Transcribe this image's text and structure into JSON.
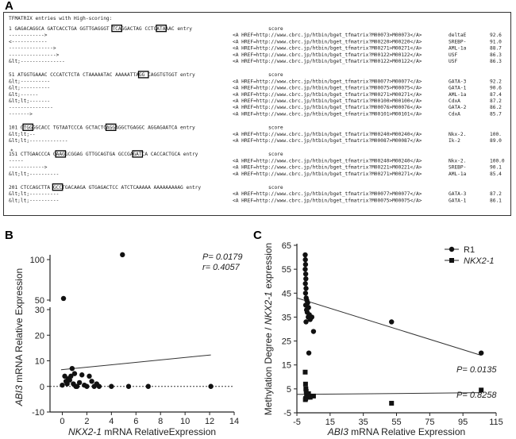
{
  "panel_letters": {
    "a": "A",
    "b": "B",
    "c": "C"
  },
  "panel_a": {
    "header": "TFMATRIX entries with High-scoring:",
    "score_word": "score",
    "asterisk": "*",
    "blocks": [
      {
        "seq_lines": [
          {
            "text": "1 GAGACAGGCA GATCACCTGA GGTTGAGGGT TCAGGACTAG CCTCATAAAC entry",
            "boxes": [
              {
                "start": 35,
                "len": 3
              },
              {
                "start": 50,
                "len": 3
              }
            ]
          },
          {
            "text": "       ------------>              ",
            "boxes": []
          },
          {
            "text": "        <------------             ",
            "boxes": []
          },
          {
            "text": "      --------------->            ",
            "boxes": []
          },
          {
            "text": "      ---------------->           ",
            "boxes": []
          },
          {
            "text": "       &lt;---------------        ",
            "boxes": []
          }
        ],
        "entries": [
          {
            "text": "<A HREF=http://www.cbrc.jp/htbin/bget_tfmatrix?M00073>M00073</A>",
            "factor": "deltaE",
            "score": "92.6"
          },
          {
            "text": "<A HREF=http://www.cbrc.jp/htbin/bget_tfmatrix?M00220>M00220</A>",
            "factor": "SREBP-",
            "score": "91.0"
          },
          {
            "text": "<A HREF=http://www.cbrc.jp/htbin/bget_tfmatrix?M00271>M00271</A>",
            "factor": "AML-1a",
            "score": "88.7"
          },
          {
            "text": "<A HREF=http://www.cbrc.jp/htbin/bget_tfmatrix?M00122>M00122</A>",
            "factor": "USF",
            "score": "86.3"
          },
          {
            "text": "<A HREF=http://www.cbrc.jp/htbin/bget_tfmatrix?M00122>M00122</A>",
            "factor": "USF",
            "score": "86.3"
          }
        ]
      },
      {
        "seq_lines": [
          {
            "text": "51 ATGGTGAAAC CCCATCTCTA CTAAAAATAC AAAAATTAGG CAGGTGTGGT entry",
            "boxes": [
              {
                "start": 44,
                "len": 3
              }
            ]
          },
          {
            "text": "          &lt;----------          ",
            "boxes": []
          },
          {
            "text": "         &lt;----------           ",
            "boxes": []
          },
          {
            "text": "        &lt;------               ",
            "boxes": []
          },
          {
            "text": "                      &lt;lt;-------",
            "boxes": []
          },
          {
            "text": "           ---------------        ",
            "boxes": []
          },
          {
            "text": "                  ------->        ",
            "boxes": []
          }
        ],
        "entries": [
          {
            "text": "<A HREF=http://www.cbrc.jp/htbin/bget_tfmatrix?M00077>M00077</A>",
            "factor": "GATA-3",
            "score": "92.2"
          },
          {
            "text": "<A HREF=http://www.cbrc.jp/htbin/bget_tfmatrix?M00075>M00075</A>",
            "factor": "GATA-1",
            "score": "90.6"
          },
          {
            "text": "<A HREF=http://www.cbrc.jp/htbin/bget_tfmatrix?M00271>M00271</A>",
            "factor": "AML-1a",
            "score": "87.4"
          },
          {
            "text": "<A HREF=http://www.cbrc.jp/htbin/bget_tfmatrix?M00100>M00100</A>",
            "factor": "CdxA",
            "score": "87.2"
          },
          {
            "text": "<A HREF=http://www.cbrc.jp/htbin/bget_tfmatrix?M00076>M00076</A>",
            "factor": "GATA-2",
            "score": "86.2"
          },
          {
            "text": "<A HREF=http://www.cbrc.jp/htbin/bget_tfmatrix?M00101>M00101</A>",
            "factor": "CdxA",
            "score": "85.7"
          }
        ]
      },
      {
        "seq_lines": [
          {
            "text": "101 GTGGGGCACC TGTAATCCCA GCTACTCAGGAGGCTGAGGC AGGAGAATCA entry",
            "boxes": [
              {
                "start": 5,
                "len": 3
              },
              {
                "start": 33,
                "len": 3
              }
            ]
          },
          {
            "text": "                                      &lt;lt;--",
            "boxes": []
          },
          {
            "text": "       &lt;lt;-------------        ",
            "boxes": []
          }
        ],
        "entries": [
          {
            "text": "<A HREF=http://www.cbrc.jp/htbin/bget_tfmatrix?M00240>M00240</A>",
            "factor": "Nkx-2.",
            "score": "100."
          },
          {
            "text": "<A HREF=http://www.cbrc.jp/htbin/bget_tfmatrix?M00087>M00087</A>",
            "factor": "Ik-2",
            "score": "89.0"
          }
        ]
      },
      {
        "seq_lines": [
          {
            "text": "151 CTTGAACCCA GAAGGCGGAG GTTGCAGTGA GCCGAGATCA CACCACTGCA entry",
            "boxes": [
              {
                "start": 16,
                "len": 3
              },
              {
                "start": 42,
                "len": 3
              }
            ]
          },
          {
            "text": "    -----                          ",
            "boxes": []
          },
          {
            "text": "                 ------------>     ",
            "boxes": []
          },
          {
            "text": "               &lt;lt;----------     ",
            "boxes": []
          }
        ],
        "entries": [
          {
            "text": "<A HREF=http://www.cbrc.jp/htbin/bget_tfmatrix?M00240>M00240</A>",
            "factor": "Nkx-2.",
            "score": "100.0"
          },
          {
            "text": "<A HREF=http://www.cbrc.jp/htbin/bget_tfmatrix?M00221>M00221</A>",
            "factor": "SREBP-",
            "score": "90.1"
          },
          {
            "text": "<A HREF=http://www.cbrc.jp/htbin/bget_tfmatrix?M00271>M00271</A>",
            "factor": "AML-1a",
            "score": "85.4"
          }
        ]
      },
      {
        "seq_lines": [
          {
            "text": "201 CTCCAGCTTA GCCTGACAAGA GTGAGACTCC ATCTCAAAAA AAAAAAAAAG entry",
            "boxes": [
              {
                "start": 15,
                "len": 3
              }
            ]
          },
          {
            "text": "              &lt;lt;----------      ",
            "boxes": []
          },
          {
            "text": "              &lt;lt;----------      ",
            "boxes": []
          }
        ],
        "entries": [
          {
            "text": "<A HREF=http://www.cbrc.jp/htbin/bget_tfmatrix?M00077>M00077</A>",
            "factor": "GATA-3",
            "score": "87.2"
          },
          {
            "text": "<A HREF=http://www.cbrc.jp/htbin/bget_tfmatrix?M00075>M00075</A>",
            "factor": "GATA-1",
            "score": "86.1"
          }
        ]
      }
    ]
  },
  "chart_data": [
    {
      "type": "scatter",
      "panel": "B",
      "xlabel_italic": "NKX2-1",
      "xlabel_rest": " mRNA RelativeExpression",
      "ylabel_italic": "ABI3",
      "ylabel_rest": " mRNA Relative Expression",
      "x_ticks": [
        "0",
        "2",
        "4",
        "6",
        "8",
        "10",
        "12",
        "14"
      ],
      "y_ticks": [
        "-10",
        "0",
        "10",
        "20",
        "30",
        "50",
        "100"
      ],
      "xlim": [
        -1,
        14
      ],
      "ylim_lower": [
        -10,
        30
      ],
      "ylim_upper": [
        50,
        110
      ],
      "stats": {
        "p": "P= 0.0179",
        "r": "r= 0.4057"
      },
      "points": [
        {
          "x": 0.1,
          "y": 52
        },
        {
          "x": 4.9,
          "y": 106
        },
        {
          "x": 0.0,
          "y": 0.5
        },
        {
          "x": 0.2,
          "y": 4
        },
        {
          "x": 0.3,
          "y": 2
        },
        {
          "x": 0.4,
          "y": 1
        },
        {
          "x": 0.5,
          "y": 3
        },
        {
          "x": 0.6,
          "y": 2.5
        },
        {
          "x": 0.7,
          "y": 4
        },
        {
          "x": 0.8,
          "y": 7
        },
        {
          "x": 0.9,
          "y": 1
        },
        {
          "x": 1.0,
          "y": 5
        },
        {
          "x": 1.1,
          "y": 0
        },
        {
          "x": 1.2,
          "y": 0
        },
        {
          "x": 1.4,
          "y": 1.5
        },
        {
          "x": 1.6,
          "y": 4.5
        },
        {
          "x": 1.8,
          "y": 0.5
        },
        {
          "x": 2.0,
          "y": 0
        },
        {
          "x": 2.2,
          "y": 4
        },
        {
          "x": 2.4,
          "y": 2
        },
        {
          "x": 2.6,
          "y": 0
        },
        {
          "x": 2.8,
          "y": 1
        },
        {
          "x": 3.0,
          "y": 0
        },
        {
          "x": 4.0,
          "y": 0
        },
        {
          "x": 5.4,
          "y": 0
        },
        {
          "x": 7.0,
          "y": 0
        },
        {
          "x": 12.1,
          "y": 0
        }
      ],
      "regression": {
        "x1": -0.1,
        "y1": 6.5,
        "x2": 12.1,
        "y2": 12.3
      },
      "zero_line": 0
    },
    {
      "type": "scatter",
      "panel": "C",
      "xlabel_italic": "ABI3",
      "xlabel_rest": " mRNA Relative Expression",
      "ylabel_pre": "Methylation Degree / ",
      "ylabel_italic": "NKX2-1",
      "ylabel_rest": " expression",
      "x_ticks": [
        "-5",
        "15",
        "35",
        "55",
        "75",
        "95",
        "115"
      ],
      "y_ticks": [
        "-5",
        "5",
        "15",
        "25",
        "35",
        "45",
        "55",
        "65"
      ],
      "xlim": [
        -5,
        115
      ],
      "ylim": [
        -5,
        65
      ],
      "legend": [
        {
          "label": "R1",
          "marker": "circle",
          "italic": false
        },
        {
          "label": "NKX2-1",
          "marker": "square",
          "italic": true
        }
      ],
      "stats": {
        "p_r1": "P= 0.0135",
        "p_nkx": "P= 0.8258"
      },
      "series": [
        {
          "name": "R1",
          "marker": "circle",
          "points": [
            {
              "x": 0.0,
              "y": 61
            },
            {
              "x": 0.1,
              "y": 59
            },
            {
              "x": 0.2,
              "y": 57
            },
            {
              "x": 0.0,
              "y": 55
            },
            {
              "x": 0.3,
              "y": 53
            },
            {
              "x": 0.4,
              "y": 51
            },
            {
              "x": 0.1,
              "y": 49
            },
            {
              "x": 0.5,
              "y": 47
            },
            {
              "x": 0.2,
              "y": 45
            },
            {
              "x": 0.6,
              "y": 43
            },
            {
              "x": 1.0,
              "y": 42
            },
            {
              "x": 1.5,
              "y": 41
            },
            {
              "x": 0.3,
              "y": 40
            },
            {
              "x": 2.0,
              "y": 39
            },
            {
              "x": 0.8,
              "y": 38
            },
            {
              "x": 1.2,
              "y": 37
            },
            {
              "x": 2.5,
              "y": 36
            },
            {
              "x": 1.8,
              "y": 35
            },
            {
              "x": 3.0,
              "y": 34
            },
            {
              "x": 0.5,
              "y": 33
            },
            {
              "x": 4.0,
              "y": 35
            },
            {
              "x": 5.0,
              "y": 29
            },
            {
              "x": 2.2,
              "y": 20
            },
            {
              "x": 52,
              "y": 33
            },
            {
              "x": 106,
              "y": 20
            }
          ],
          "regression": {
            "x1": -5,
            "y1": 43,
            "x2": 106,
            "y2": 19
          }
        },
        {
          "name": "NKX2-1",
          "marker": "square",
          "points": [
            {
              "x": 0.0,
              "y": 12
            },
            {
              "x": 0.2,
              "y": 7
            },
            {
              "x": 0.4,
              "y": 5
            },
            {
              "x": 0.6,
              "y": 4
            },
            {
              "x": 0.8,
              "y": 3
            },
            {
              "x": 1.0,
              "y": 2.5
            },
            {
              "x": 1.2,
              "y": 2
            },
            {
              "x": 1.5,
              "y": 1.5
            },
            {
              "x": 2.0,
              "y": 3
            },
            {
              "x": 2.5,
              "y": 2
            },
            {
              "x": 3.0,
              "y": 1.5
            },
            {
              "x": 0.3,
              "y": 1
            },
            {
              "x": 0.1,
              "y": 0.5
            },
            {
              "x": 5.0,
              "y": 2
            },
            {
              "x": 52,
              "y": -1
            },
            {
              "x": 106,
              "y": 4.5
            }
          ],
          "regression": {
            "x1": -5,
            "y1": 2.7,
            "x2": 106,
            "y2": 3.4
          }
        }
      ]
    }
  ]
}
